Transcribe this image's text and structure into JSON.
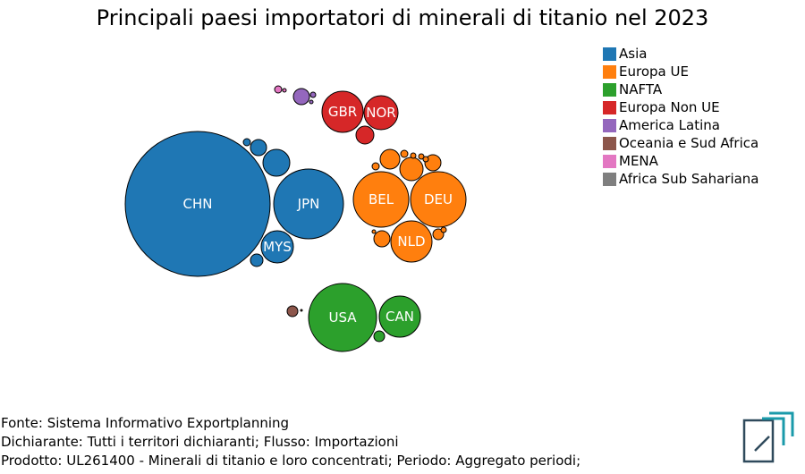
{
  "title": "Principali paesi importatori di minerali di titanio nel 2023",
  "legend": [
    {
      "label": "Asia",
      "color": "#1f77b4"
    },
    {
      "label": "Europa UE",
      "color": "#ff7f0e"
    },
    {
      "label": "NAFTA",
      "color": "#2ca02c"
    },
    {
      "label": "Europa Non UE",
      "color": "#d62728"
    },
    {
      "label": "America Latina",
      "color": "#9467bd"
    },
    {
      "label": "Oceania e Sud Africa",
      "color": "#8c564b"
    },
    {
      "label": "MENA",
      "color": "#e377c2"
    },
    {
      "label": "Africa Sub Sahariana",
      "color": "#7f7f7f"
    }
  ],
  "chart_data": {
    "type": "bubble",
    "title": "Principali paesi importatori di minerali di titanio nel 2023",
    "grid": false,
    "legend_position": "top-right",
    "bubbles": [
      {
        "label": "CHN",
        "group": "Asia"
      },
      {
        "label": "JPN",
        "group": "Asia"
      },
      {
        "label": "MYS",
        "group": "Asia"
      },
      {
        "label": "",
        "group": "Asia"
      },
      {
        "label": "",
        "group": "Asia"
      },
      {
        "label": "",
        "group": "Asia"
      },
      {
        "label": "",
        "group": "Asia"
      },
      {
        "label": "BEL",
        "group": "Europa UE"
      },
      {
        "label": "DEU",
        "group": "Europa UE"
      },
      {
        "label": "NLD",
        "group": "Europa UE"
      },
      {
        "label": "",
        "group": "Europa UE"
      },
      {
        "label": "",
        "group": "Europa UE"
      },
      {
        "label": "",
        "group": "Europa UE"
      },
      {
        "label": "",
        "group": "Europa UE"
      },
      {
        "label": "",
        "group": "Europa UE"
      },
      {
        "label": "",
        "group": "Europa UE"
      },
      {
        "label": "",
        "group": "Europa UE"
      },
      {
        "label": "",
        "group": "Europa UE"
      },
      {
        "label": "",
        "group": "Europa UE"
      },
      {
        "label": "",
        "group": "Europa UE"
      },
      {
        "label": "",
        "group": "Europa UE"
      },
      {
        "label": "",
        "group": "Europa UE"
      },
      {
        "label": "USA",
        "group": "NAFTA"
      },
      {
        "label": "CAN",
        "group": "NAFTA"
      },
      {
        "label": "",
        "group": "NAFTA"
      },
      {
        "label": "GBR",
        "group": "Europa Non UE"
      },
      {
        "label": "NOR",
        "group": "Europa Non UE"
      },
      {
        "label": "",
        "group": "Europa Non UE"
      },
      {
        "label": "",
        "group": "America Latina"
      },
      {
        "label": "",
        "group": "America Latina"
      },
      {
        "label": "",
        "group": "America Latina"
      },
      {
        "label": "",
        "group": "Oceania e Sud Africa"
      },
      {
        "label": "",
        "group": "Oceania e Sud Africa"
      },
      {
        "label": "",
        "group": "MENA"
      },
      {
        "label": "",
        "group": "MENA"
      }
    ]
  },
  "footer": {
    "source": "Fonte: Sistema Informativo Exportplanning",
    "declarant": "Dichiarante: Tutti i territori dichiaranti; Flusso: Importazioni",
    "product": "Prodotto: UL261400 - Minerali di titanio e loro concentrati; Periodo: Aggregato periodi;"
  }
}
